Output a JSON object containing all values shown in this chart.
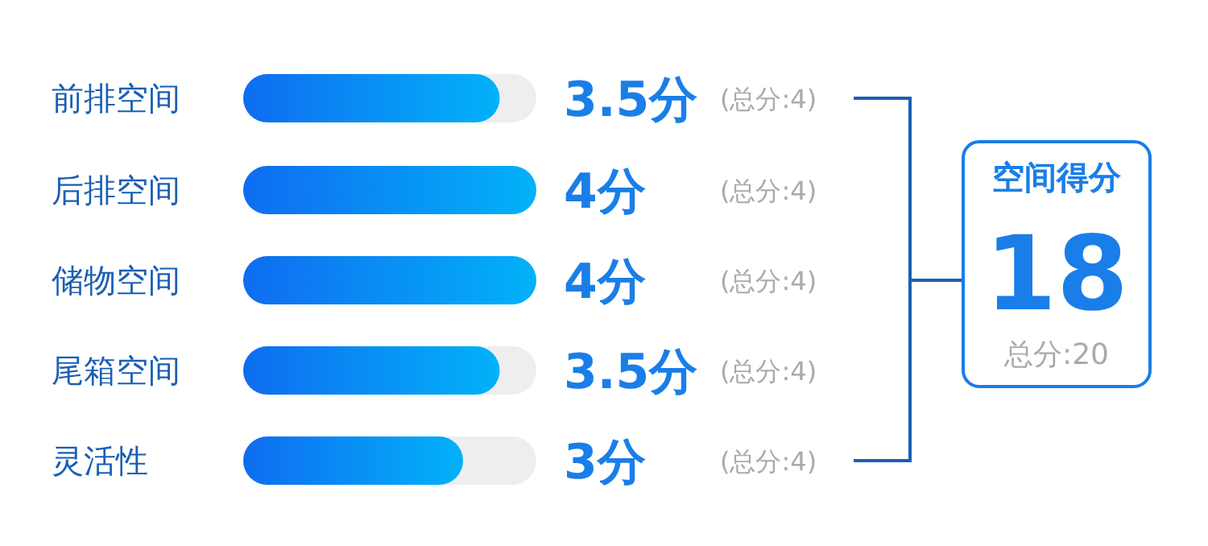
{
  "chart_data": {
    "type": "bar",
    "orientation": "horizontal",
    "categories": [
      "前排空间",
      "后排空间",
      "储物空间",
      "尾箱空间",
      "灵活性"
    ],
    "values": [
      3.5,
      4,
      4,
      3.5,
      3
    ],
    "value_labels": [
      "3.5分",
      "4分",
      "4分",
      "3.5分",
      "3分"
    ],
    "xlim": [
      0,
      4
    ],
    "color": "#0f6cf0",
    "annotations": [
      "(总分:4)",
      "(总分:4)",
      "(总分:4)",
      "(总分:4)",
      "(总分:4)",
      "空间得分",
      "18",
      "总分:20"
    ]
  }
}
